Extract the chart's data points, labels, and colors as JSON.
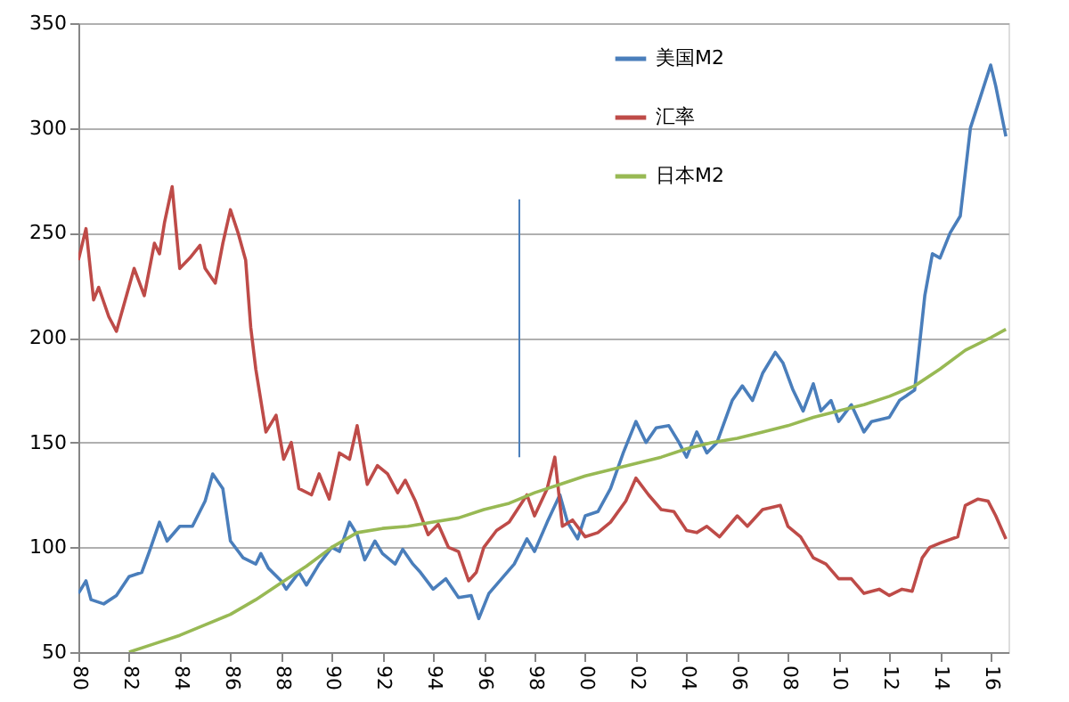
{
  "chart_data": {
    "type": "line",
    "xlim": [
      1980,
      2016.7
    ],
    "ylim": [
      50,
      350
    ],
    "xticks": [
      {
        "value": 1980,
        "label": "80"
      },
      {
        "value": 1982,
        "label": "82"
      },
      {
        "value": 1984,
        "label": "84"
      },
      {
        "value": 1986,
        "label": "86"
      },
      {
        "value": 1988,
        "label": "88"
      },
      {
        "value": 1990,
        "label": "90"
      },
      {
        "value": 1992,
        "label": "92"
      },
      {
        "value": 1994,
        "label": "94"
      },
      {
        "value": 1996,
        "label": "96"
      },
      {
        "value": 1998,
        "label": "98"
      },
      {
        "value": 2000,
        "label": "00"
      },
      {
        "value": 2002,
        "label": "02"
      },
      {
        "value": 2004,
        "label": "04"
      },
      {
        "value": 2006,
        "label": "06"
      },
      {
        "value": 2008,
        "label": "08"
      },
      {
        "value": 2010,
        "label": "10"
      },
      {
        "value": 2012,
        "label": "12"
      },
      {
        "value": 2014,
        "label": "14"
      },
      {
        "value": 2016,
        "label": "16"
      }
    ],
    "yticks": [
      50,
      100,
      150,
      200,
      250,
      300,
      350
    ],
    "grid": "y",
    "legend": "top",
    "line_style": "solid",
    "marker": "none",
    "series": [
      {
        "name": "美国M2",
        "color": "#4a7ebb",
        "x": [
          1980,
          1980.3,
          1980.5,
          1981,
          1981.5,
          1982,
          1982.5,
          1982.8,
          1983.2,
          1983.5,
          1984,
          1984.5,
          1985,
          1985.3,
          1985.7,
          1986,
          1986.5,
          1987,
          1987.2,
          1987.5,
          1988,
          1988.2,
          1988.7,
          1989,
          1989.5,
          1990,
          1990.3,
          1990.7,
          1991,
          1991.3,
          1991.7,
          1992,
          1992.5,
          1992.8,
          1993.2,
          1993.5,
          1994,
          1994.5,
          1995,
          1995.5,
          1995.8,
          1996.2,
          1996.7,
          1997.2,
          1997.7,
          1998,
          1998.5,
          1999,
          1999.3,
          1999.7,
          2000,
          2000.5,
          2001,
          2001.5,
          2002,
          2002.4,
          2002.8,
          2003.3,
          2003.7,
          2004,
          2004.4,
          2004.8,
          2005.2,
          2005.8,
          2006.2,
          2006.6,
          2007,
          2007.5,
          2007.8,
          2008.2,
          2008.6,
          2009,
          2009.3,
          2009.7,
          2010,
          2010.5,
          2011,
          2011.3,
          2012,
          2012.4,
          2013,
          2013.4,
          2013.7,
          2014,
          2014.4,
          2014.8,
          2015.2,
          2015.6,
          2016,
          2016.2,
          2016.6
        ],
        "values": [
          78,
          84,
          75,
          73,
          77,
          86,
          88,
          98,
          112,
          103,
          110,
          110,
          122,
          135,
          128,
          103,
          95,
          92,
          97,
          90,
          84,
          80,
          88,
          82,
          92,
          100,
          98,
          112,
          106,
          94,
          103,
          97,
          92,
          99,
          92,
          88,
          80,
          85,
          76,
          77,
          66,
          78,
          85,
          92,
          104,
          98,
          112,
          125,
          112,
          104,
          115,
          117,
          128,
          145,
          160,
          150,
          157,
          158,
          150,
          143,
          155,
          145,
          150,
          170,
          177,
          170,
          183,
          193,
          188,
          175,
          165,
          178,
          165,
          170,
          160,
          168,
          155,
          160,
          162,
          170,
          175,
          220,
          240,
          238,
          250,
          258,
          300,
          315,
          330,
          320,
          296
        ]
      },
      {
        "name": "汇率",
        "color": "#be4b48",
        "x": [
          1980,
          1980.3,
          1980.6,
          1980.8,
          1981.2,
          1981.5,
          1982.2,
          1982.6,
          1983,
          1983.2,
          1983.4,
          1983.7,
          1984,
          1984.4,
          1984.8,
          1985,
          1985.4,
          1985.7,
          1986,
          1986.3,
          1986.6,
          1986.8,
          1987,
          1987.4,
          1987.8,
          1988.1,
          1988.4,
          1988.7,
          1989.2,
          1989.5,
          1989.9,
          1990.3,
          1990.7,
          1991,
          1991.4,
          1991.8,
          1992.2,
          1992.6,
          1992.9,
          1993.3,
          1993.8,
          1994.2,
          1994.6,
          1995,
          1995.4,
          1995.7,
          1996,
          1996.5,
          1997,
          1997.7,
          1998,
          1998.5,
          1998.8,
          1999.1,
          1999.5,
          2000,
          2000.5,
          2001,
          2001.6,
          2002,
          2002.5,
          2003,
          2003.5,
          2004,
          2004.4,
          2004.8,
          2005.3,
          2006,
          2006.4,
          2007,
          2007.7,
          2008,
          2008.5,
          2009,
          2009.5,
          2010,
          2010.5,
          2011,
          2011.6,
          2012,
          2012.5,
          2012.9,
          2013.3,
          2013.6,
          2014,
          2014.7,
          2015,
          2015.5,
          2015.9,
          2016.2,
          2016.6
        ],
        "values": [
          237,
          252,
          218,
          224,
          210,
          203,
          233,
          220,
          245,
          240,
          255,
          272,
          233,
          238,
          244,
          233,
          226,
          245,
          261,
          250,
          237,
          205,
          185,
          155,
          163,
          142,
          150,
          128,
          125,
          135,
          123,
          145,
          142,
          158,
          130,
          139,
          135,
          126,
          132,
          122,
          106,
          111,
          100,
          98,
          84,
          88,
          100,
          108,
          112,
          125,
          115,
          128,
          143,
          110,
          113,
          105,
          107,
          112,
          122,
          133,
          125,
          118,
          117,
          108,
          107,
          110,
          105,
          115,
          110,
          118,
          120,
          110,
          105,
          95,
          92,
          85,
          85,
          78,
          80,
          77,
          80,
          79,
          95,
          100,
          102,
          105,
          120,
          123,
          122,
          115,
          104
        ]
      },
      {
        "name": "日本M2",
        "color": "#98b954",
        "x": [
          1982,
          1983,
          1984,
          1985,
          1986,
          1987,
          1988,
          1989,
          1990,
          1991,
          1992,
          1993,
          1994,
          1995,
          1996,
          1997,
          1998,
          1999,
          2000,
          2001,
          2002,
          2003,
          2004,
          2005,
          2006,
          2007,
          2008,
          2009,
          2010,
          2011,
          2012,
          2013,
          2014,
          2015,
          2016,
          2016.6
        ],
        "values": [
          50,
          54,
          58,
          63,
          68,
          75,
          83,
          91,
          100,
          107,
          109,
          110,
          112,
          114,
          118,
          121,
          126,
          130,
          134,
          137,
          140,
          143,
          147,
          150,
          152,
          155,
          158,
          162,
          165,
          168,
          172,
          177,
          185,
          194,
          200,
          204
        ]
      },
      {
        "color": "#4a7ebb",
        "x": [
          1997.4,
          1997.4
        ],
        "values": [
          143,
          266
        ]
      }
    ]
  }
}
